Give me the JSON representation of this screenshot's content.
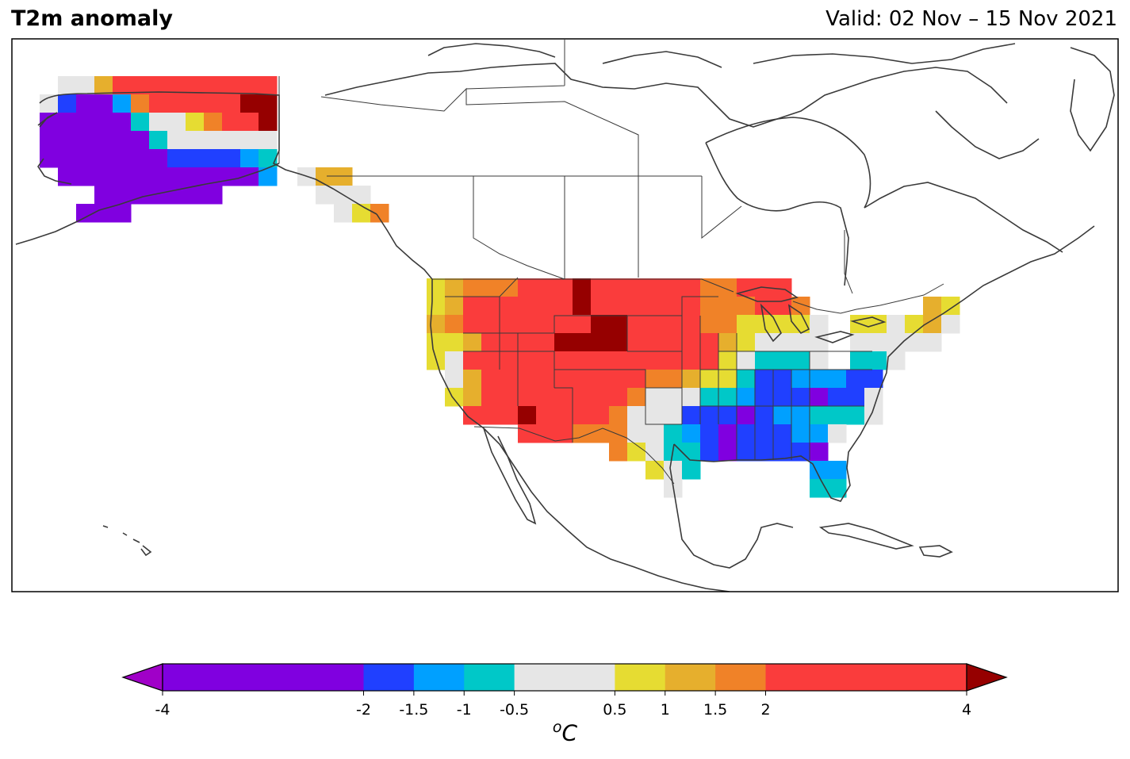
{
  "title": "T2m anomaly",
  "valid_label": "Valid: 02 Nov – 15 Nov 2021",
  "colorbar": {
    "unit_base": "C",
    "unit_sup": "o",
    "bounds": [
      -4,
      -2,
      -1.5,
      -1,
      -0.5,
      0.5,
      1,
      1.5,
      2,
      4
    ],
    "ticks": [
      "-4",
      "-2",
      "-1.5",
      "-1",
      "-0.5",
      "0.5",
      "1",
      "1.5",
      "2",
      "4"
    ],
    "colors": [
      "#8000e0",
      "#2040ff",
      "#00a0ff",
      "#00c8c8",
      "#e6e6e6",
      "#e6dc32",
      "#e6af2d",
      "#f08228",
      "#fa3c3c"
    ],
    "under_color": "#a000c8",
    "over_color": "#960000"
  },
  "legend_colors": {
    "below": "#a000c8",
    "c1": "#8000e0",
    "c2": "#2040ff",
    "c3": "#00a0ff",
    "c4": "#00c8c8",
    "c5": "#e6e6e6",
    "c6": "#e6dc32",
    "c7": "#e6af2d",
    "c8": "#f08228",
    "c9": "#fa3c3c",
    "above": "#960000"
  },
  "grid_rows": [
    {
      "y": 96,
      "cells": [
        [
          73,
          "c5"
        ],
        [
          96,
          "c5"
        ],
        [
          119,
          "c7"
        ],
        [
          142,
          "c9"
        ],
        [
          165,
          "c9"
        ],
        [
          188,
          "c9"
        ],
        [
          211,
          "c9"
        ],
        [
          234,
          "c9"
        ],
        [
          257,
          "c9"
        ],
        [
          280,
          "c9"
        ],
        [
          303,
          "c9"
        ],
        [
          326,
          "c9"
        ]
      ]
    },
    {
      "y": 119,
      "cells": [
        [
          50,
          "c5"
        ],
        [
          73,
          "c2"
        ],
        [
          96,
          "c1"
        ],
        [
          119,
          "c1"
        ],
        [
          142,
          "c3"
        ],
        [
          165,
          "c8"
        ],
        [
          188,
          "c9"
        ],
        [
          211,
          "c9"
        ],
        [
          234,
          "c9"
        ],
        [
          257,
          "c9"
        ],
        [
          280,
          "c9"
        ],
        [
          303,
          "above"
        ],
        [
          326,
          "above"
        ]
      ]
    },
    {
      "y": 142,
      "cells": [
        [
          50,
          "c1"
        ],
        [
          73,
          "c1"
        ],
        [
          96,
          "c1"
        ],
        [
          119,
          "c1"
        ],
        [
          142,
          "c1"
        ],
        [
          165,
          "c4"
        ],
        [
          188,
          "c5"
        ],
        [
          211,
          "c5"
        ],
        [
          234,
          "c6"
        ],
        [
          257,
          "c8"
        ],
        [
          280,
          "c9"
        ],
        [
          303,
          "c9"
        ],
        [
          326,
          "above"
        ]
      ]
    },
    {
      "y": 165,
      "cells": [
        [
          50,
          "c1"
        ],
        [
          73,
          "c1"
        ],
        [
          96,
          "c1"
        ],
        [
          119,
          "c1"
        ],
        [
          142,
          "c1"
        ],
        [
          165,
          "c1"
        ],
        [
          188,
          "c4"
        ],
        [
          211,
          "c5"
        ],
        [
          234,
          "c5"
        ],
        [
          257,
          "c5"
        ],
        [
          280,
          "c5"
        ],
        [
          303,
          "c5"
        ],
        [
          326,
          "c5"
        ]
      ]
    },
    {
      "y": 188,
      "cells": [
        [
          50,
          "c1"
        ],
        [
          73,
          "c1"
        ],
        [
          96,
          "c1"
        ],
        [
          119,
          "c1"
        ],
        [
          142,
          "c1"
        ],
        [
          165,
          "c1"
        ],
        [
          188,
          "c1"
        ],
        [
          211,
          "c2"
        ],
        [
          234,
          "c2"
        ],
        [
          257,
          "c2"
        ],
        [
          280,
          "c2"
        ],
        [
          303,
          "c3"
        ],
        [
          326,
          "c4"
        ]
      ]
    },
    {
      "y": 211,
      "cells": [
        [
          73,
          "c1"
        ],
        [
          96,
          "c1"
        ],
        [
          119,
          "c1"
        ],
        [
          142,
          "c1"
        ],
        [
          165,
          "c1"
        ],
        [
          188,
          "c1"
        ],
        [
          211,
          "c1"
        ],
        [
          234,
          "c1"
        ],
        [
          257,
          "c1"
        ],
        [
          280,
          "c1"
        ],
        [
          303,
          "c1"
        ],
        [
          326,
          "c3"
        ],
        [
          375,
          "c5"
        ],
        [
          398,
          "c7"
        ],
        [
          421,
          "c7"
        ]
      ]
    },
    {
      "y": 234,
      "cells": [
        [
          119,
          "c1"
        ],
        [
          142,
          "c1"
        ],
        [
          165,
          "c1"
        ],
        [
          188,
          "c1"
        ],
        [
          211,
          "c1"
        ],
        [
          234,
          "c1"
        ],
        [
          257,
          "c1"
        ],
        [
          398,
          "c5"
        ],
        [
          421,
          "c5"
        ],
        [
          444,
          "c5"
        ]
      ]
    },
    {
      "y": 257,
      "cells": [
        [
          96,
          "c1"
        ],
        [
          119,
          "c1"
        ],
        [
          142,
          "c1"
        ],
        [
          421,
          "c5"
        ],
        [
          444,
          "c6"
        ],
        [
          467,
          "c8"
        ]
      ]
    },
    {
      "y": 351,
      "cells": [
        [
          538,
          "c6"
        ],
        [
          561,
          "c7"
        ],
        [
          584,
          "c8"
        ],
        [
          607,
          "c8"
        ],
        [
          630,
          "c8"
        ],
        [
          653,
          "c9"
        ],
        [
          676,
          "c9"
        ],
        [
          699,
          "c9"
        ],
        [
          722,
          "above"
        ],
        [
          745,
          "c9"
        ],
        [
          768,
          "c9"
        ],
        [
          791,
          "c9"
        ],
        [
          814,
          "c9"
        ],
        [
          837,
          "c9"
        ],
        [
          860,
          "c9"
        ],
        [
          883,
          "c8"
        ],
        [
          906,
          "c8"
        ],
        [
          929,
          "c9"
        ],
        [
          952,
          "c9"
        ],
        [
          975,
          "c9"
        ]
      ]
    },
    {
      "y": 374,
      "cells": [
        [
          538,
          "c6"
        ],
        [
          561,
          "c7"
        ],
        [
          584,
          "c9"
        ],
        [
          607,
          "c9"
        ],
        [
          630,
          "c9"
        ],
        [
          653,
          "c9"
        ],
        [
          676,
          "c9"
        ],
        [
          699,
          "c9"
        ],
        [
          722,
          "above"
        ],
        [
          745,
          "c9"
        ],
        [
          768,
          "c9"
        ],
        [
          791,
          "c9"
        ],
        [
          814,
          "c9"
        ],
        [
          837,
          "c9"
        ],
        [
          860,
          "c9"
        ],
        [
          883,
          "c8"
        ],
        [
          906,
          "c8"
        ],
        [
          929,
          "c8"
        ],
        [
          952,
          "c9"
        ],
        [
          975,
          "c9"
        ],
        [
          998,
          "c8"
        ],
        [
          1164,
          "c7"
        ],
        [
          1187,
          "c6"
        ]
      ]
    },
    {
      "y": 397,
      "cells": [
        [
          538,
          "c7"
        ],
        [
          561,
          "c8"
        ],
        [
          584,
          "c9"
        ],
        [
          607,
          "c9"
        ],
        [
          630,
          "c9"
        ],
        [
          653,
          "c9"
        ],
        [
          676,
          "c9"
        ],
        [
          699,
          "c9"
        ],
        [
          722,
          "c9"
        ],
        [
          745,
          "above"
        ],
        [
          768,
          "above"
        ],
        [
          791,
          "c9"
        ],
        [
          814,
          "c9"
        ],
        [
          837,
          "c9"
        ],
        [
          860,
          "c9"
        ],
        [
          883,
          "c8"
        ],
        [
          906,
          "c8"
        ],
        [
          929,
          "c6"
        ],
        [
          952,
          "c6"
        ],
        [
          975,
          "c6"
        ],
        [
          998,
          "c6"
        ],
        [
          1021,
          "c5"
        ],
        [
          1072,
          "c6"
        ],
        [
          1095,
          "c6"
        ],
        [
          1118,
          "c5"
        ],
        [
          1141,
          "c6"
        ],
        [
          1164,
          "c7"
        ],
        [
          1187,
          "c5"
        ]
      ]
    },
    {
      "y": 420,
      "cells": [
        [
          538,
          "c6"
        ],
        [
          561,
          "c6"
        ],
        [
          584,
          "c7"
        ],
        [
          607,
          "c9"
        ],
        [
          630,
          "c9"
        ],
        [
          653,
          "c9"
        ],
        [
          676,
          "c9"
        ],
        [
          699,
          "above"
        ],
        [
          722,
          "above"
        ],
        [
          745,
          "above"
        ],
        [
          768,
          "above"
        ],
        [
          791,
          "c9"
        ],
        [
          814,
          "c9"
        ],
        [
          837,
          "c9"
        ],
        [
          860,
          "c9"
        ],
        [
          883,
          "c9"
        ],
        [
          906,
          "c7"
        ],
        [
          929,
          "c6"
        ],
        [
          952,
          "c5"
        ],
        [
          975,
          "c5"
        ],
        [
          998,
          "c5"
        ],
        [
          1021,
          "c5"
        ],
        [
          1072,
          "c5"
        ],
        [
          1095,
          "c5"
        ],
        [
          1118,
          "c5"
        ],
        [
          1141,
          "c5"
        ],
        [
          1164,
          "c5"
        ]
      ]
    },
    {
      "y": 443,
      "cells": [
        [
          538,
          "c6"
        ],
        [
          561,
          "c5"
        ],
        [
          584,
          "c9"
        ],
        [
          607,
          "c9"
        ],
        [
          630,
          "c9"
        ],
        [
          653,
          "c9"
        ],
        [
          676,
          "c9"
        ],
        [
          699,
          "c9"
        ],
        [
          722,
          "c9"
        ],
        [
          745,
          "c9"
        ],
        [
          768,
          "c9"
        ],
        [
          791,
          "c9"
        ],
        [
          814,
          "c9"
        ],
        [
          837,
          "c9"
        ],
        [
          860,
          "c9"
        ],
        [
          883,
          "c9"
        ],
        [
          906,
          "c6"
        ],
        [
          929,
          "c5"
        ],
        [
          952,
          "c4"
        ],
        [
          975,
          "c4"
        ],
        [
          998,
          "c4"
        ],
        [
          1021,
          "c5"
        ],
        [
          1072,
          "c4"
        ],
        [
          1095,
          "c4"
        ],
        [
          1118,
          "c5"
        ]
      ]
    },
    {
      "y": 466,
      "cells": [
        [
          561,
          "c5"
        ],
        [
          584,
          "c7"
        ],
        [
          607,
          "c9"
        ],
        [
          630,
          "c9"
        ],
        [
          653,
          "c9"
        ],
        [
          676,
          "c9"
        ],
        [
          699,
          "c9"
        ],
        [
          722,
          "c9"
        ],
        [
          745,
          "c9"
        ],
        [
          768,
          "c9"
        ],
        [
          791,
          "c9"
        ],
        [
          814,
          "c8"
        ],
        [
          837,
          "c8"
        ],
        [
          860,
          "c7"
        ],
        [
          883,
          "c6"
        ],
        [
          906,
          "c6"
        ],
        [
          929,
          "c4"
        ],
        [
          952,
          "c2"
        ],
        [
          975,
          "c2"
        ],
        [
          998,
          "c3"
        ],
        [
          1021,
          "c3"
        ],
        [
          1044,
          "c3"
        ],
        [
          1067,
          "c2"
        ],
        [
          1090,
          "c2"
        ]
      ]
    },
    {
      "y": 489,
      "cells": [
        [
          561,
          "c6"
        ],
        [
          584,
          "c7"
        ],
        [
          607,
          "c9"
        ],
        [
          630,
          "c9"
        ],
        [
          653,
          "c9"
        ],
        [
          676,
          "c9"
        ],
        [
          699,
          "c9"
        ],
        [
          722,
          "c9"
        ],
        [
          745,
          "c9"
        ],
        [
          768,
          "c9"
        ],
        [
          791,
          "c8"
        ],
        [
          814,
          "c5"
        ],
        [
          837,
          "c5"
        ],
        [
          860,
          "c5"
        ],
        [
          883,
          "c4"
        ],
        [
          906,
          "c4"
        ],
        [
          929,
          "c3"
        ],
        [
          952,
          "c2"
        ],
        [
          975,
          "c2"
        ],
        [
          998,
          "c2"
        ],
        [
          1021,
          "c1"
        ],
        [
          1044,
          "c2"
        ],
        [
          1067,
          "c2"
        ],
        [
          1090,
          "c5"
        ]
      ]
    },
    {
      "y": 512,
      "cells": [
        [
          584,
          "c9"
        ],
        [
          607,
          "c9"
        ],
        [
          630,
          "c9"
        ],
        [
          653,
          "above"
        ],
        [
          676,
          "c9"
        ],
        [
          699,
          "c9"
        ],
        [
          722,
          "c9"
        ],
        [
          745,
          "c9"
        ],
        [
          768,
          "c8"
        ],
        [
          791,
          "c5"
        ],
        [
          814,
          "c5"
        ],
        [
          837,
          "c5"
        ],
        [
          860,
          "c2"
        ],
        [
          883,
          "c2"
        ],
        [
          906,
          "c2"
        ],
        [
          929,
          "c1"
        ],
        [
          952,
          "c2"
        ],
        [
          975,
          "c3"
        ],
        [
          998,
          "c3"
        ],
        [
          1021,
          "c4"
        ],
        [
          1044,
          "c4"
        ],
        [
          1067,
          "c4"
        ],
        [
          1090,
          "c5"
        ]
      ]
    },
    {
      "y": 535,
      "cells": [
        [
          653,
          "c9"
        ],
        [
          676,
          "c9"
        ],
        [
          699,
          "c9"
        ],
        [
          722,
          "c8"
        ],
        [
          745,
          "c8"
        ],
        [
          768,
          "c8"
        ],
        [
          791,
          "c5"
        ],
        [
          814,
          "c5"
        ],
        [
          837,
          "c4"
        ],
        [
          860,
          "c3"
        ],
        [
          883,
          "c2"
        ],
        [
          906,
          "c1"
        ],
        [
          929,
          "c2"
        ],
        [
          952,
          "c2"
        ],
        [
          975,
          "c2"
        ],
        [
          998,
          "c3"
        ],
        [
          1021,
          "c3"
        ],
        [
          1044,
          "c5"
        ]
      ]
    },
    {
      "y": 558,
      "cells": [
        [
          768,
          "c8"
        ],
        [
          791,
          "c6"
        ],
        [
          814,
          "c5"
        ],
        [
          837,
          "c4"
        ],
        [
          860,
          "c4"
        ],
        [
          883,
          "c2"
        ],
        [
          906,
          "c1"
        ],
        [
          929,
          "c2"
        ],
        [
          952,
          "c2"
        ],
        [
          975,
          "c2"
        ],
        [
          998,
          "c2"
        ],
        [
          1021,
          "c1"
        ]
      ]
    },
    {
      "y": 581,
      "cells": [
        [
          814,
          "c6"
        ],
        [
          837,
          "c5"
        ],
        [
          860,
          "c4"
        ],
        [
          1021,
          "c3"
        ],
        [
          1044,
          "c3"
        ]
      ]
    },
    {
      "y": 604,
      "cells": [
        [
          837,
          "c5"
        ],
        [
          1021,
          "c4"
        ],
        [
          1044,
          "c4"
        ]
      ]
    }
  ]
}
